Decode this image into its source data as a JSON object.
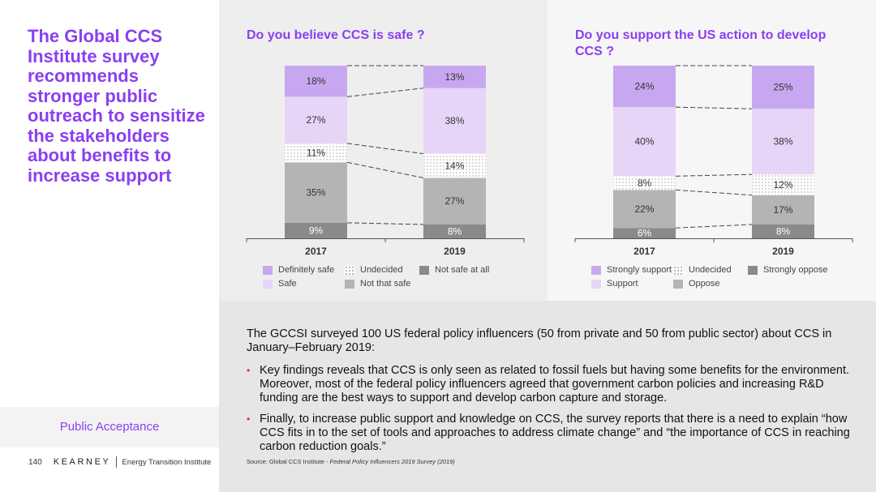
{
  "headline": "The Global CCS Institute survey recommends stronger public outreach to sensitize the stakeholders about benefits to increase support",
  "section_label": "Public Acceptance",
  "footer": {
    "page_number": "140",
    "logo": "KEARNEY",
    "institute": "Energy Transition Institute"
  },
  "colors": {
    "accent": "#8a3ff0",
    "bullet": "#c0392b"
  },
  "chart_data": [
    {
      "type": "bar",
      "stacked": true,
      "title": "Do you believe CCS is safe ?",
      "categories": [
        "2017",
        "2019"
      ],
      "unit": "%",
      "series": [
        {
          "name": "Not safe at all",
          "values": [
            9,
            8
          ],
          "color": "#8a8a8a",
          "pattern": "solid",
          "label_color": "#ffffff"
        },
        {
          "name": "Not that safe",
          "values": [
            35,
            27
          ],
          "color": "#b4b4b4",
          "pattern": "solid",
          "label_color": "#333333"
        },
        {
          "name": "Undecided",
          "values": [
            11,
            14
          ],
          "color": "#ffffff",
          "pattern": "dots",
          "label_color": "#333333"
        },
        {
          "name": "Safe",
          "values": [
            27,
            38
          ],
          "color": "#e6d5f7",
          "pattern": "solid",
          "label_color": "#333333"
        },
        {
          "name": "Definitely safe",
          "values": [
            18,
            13
          ],
          "color": "#c7a8f0",
          "pattern": "solid",
          "label_color": "#333333"
        }
      ],
      "legend_order": [
        "Definitely safe",
        "Undecided",
        "Not safe at all",
        "Safe",
        "Not that safe"
      ],
      "legend_position": "bottom",
      "connectors": true
    },
    {
      "type": "bar",
      "stacked": true,
      "title": "Do you support the US action to develop CCS ?",
      "categories": [
        "2017",
        "2019"
      ],
      "unit": "%",
      "series": [
        {
          "name": "Strongly oppose",
          "values": [
            6,
            8
          ],
          "color": "#8a8a8a",
          "pattern": "solid",
          "label_color": "#ffffff"
        },
        {
          "name": "Oppose",
          "values": [
            22,
            17
          ],
          "color": "#b4b4b4",
          "pattern": "solid",
          "label_color": "#333333"
        },
        {
          "name": "Undecided",
          "values": [
            8,
            12
          ],
          "color": "#ffffff",
          "pattern": "dots",
          "label_color": "#333333"
        },
        {
          "name": "Support",
          "values": [
            40,
            38
          ],
          "color": "#e6d5f7",
          "pattern": "solid",
          "label_color": "#333333"
        },
        {
          "name": "Strongly support",
          "values": [
            24,
            25
          ],
          "color": "#c7a8f0",
          "pattern": "solid",
          "label_color": "#333333"
        }
      ],
      "legend_order": [
        "Strongly support",
        "Undecided",
        "Strongly oppose",
        "Support",
        "Oppose"
      ],
      "legend_position": "bottom",
      "connectors": true
    }
  ],
  "body": {
    "intro": "The GCCSI surveyed 100 US federal policy influencers (50 from private and 50 from public sector) about CCS in January–February 2019:",
    "bullets": [
      "Key findings reveals that CCS is only seen as related to fossil fuels but having some benefits for the environment. Moreover, most of the federal policy influencers agreed that government carbon policies and increasing R&D funding are the best ways to support and develop carbon capture and storage.",
      "Finally, to increase public support and knowledge on CCS, the survey reports that there is a need to explain “how CCS fits in to the set of tools and approaches to address climate change” and “the importance of CCS in reaching carbon reduction goals.”"
    ],
    "source_prefix": "Source: Global CCS Institute - ",
    "source_title": "Federal Policy Influencers 2019 Survey (2019)"
  }
}
